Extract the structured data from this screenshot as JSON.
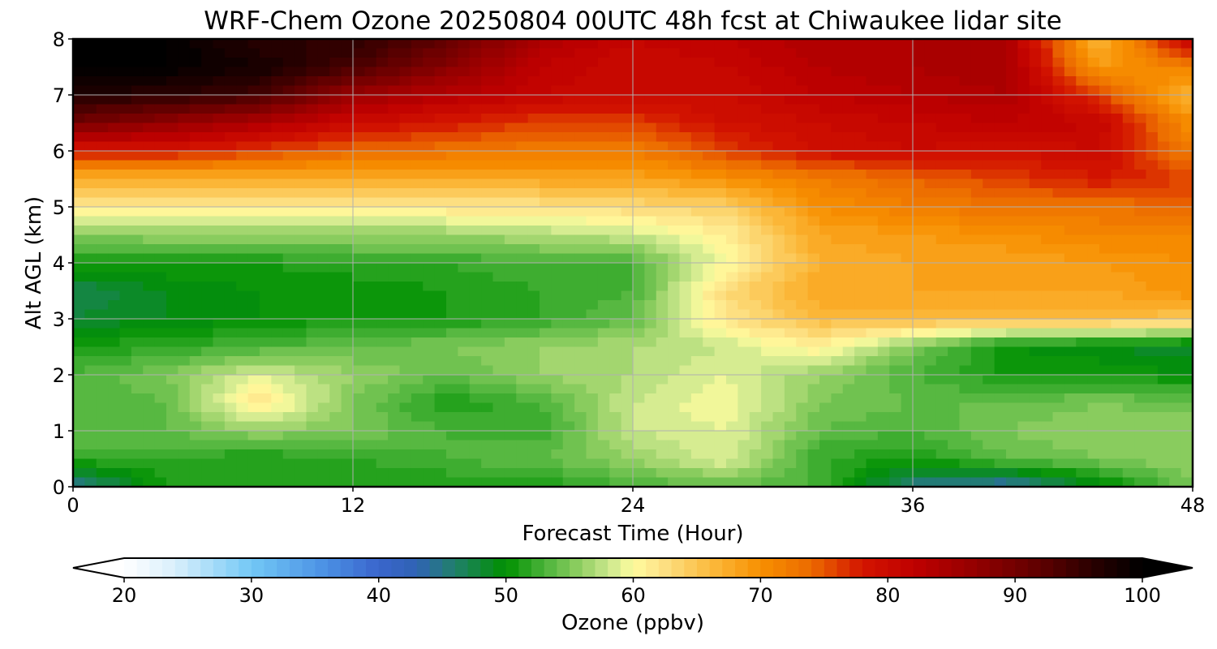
{
  "chart_data": {
    "type": "heatmap",
    "title": "WRF-Chem Ozone  20250804 00UTC 48h fcst at Chiwaukee lidar site",
    "xlabel": "Forecast Time (Hour)",
    "ylabel": "Alt AGL (km)",
    "xlim": [
      0,
      48
    ],
    "ylim": [
      0,
      8
    ],
    "x_ticks": [
      "0",
      "12",
      "24",
      "36",
      "48"
    ],
    "y_ticks": [
      "0",
      "1",
      "2",
      "3",
      "4",
      "5",
      "6",
      "7",
      "8"
    ],
    "grid": true,
    "x_hours": [
      0,
      4,
      8,
      12,
      16,
      20,
      24,
      28,
      32,
      36,
      40,
      44,
      48
    ],
    "z_km": [
      0,
      0.5,
      1,
      1.5,
      2,
      2.5,
      3,
      3.5,
      4,
      4.5,
      5,
      5.5,
      6,
      6.5,
      7,
      7.5,
      8
    ],
    "ozone_ppbv": [
      [
        44,
        51,
        51,
        51,
        51,
        51,
        53,
        54,
        53,
        45,
        43,
        49,
        55
      ],
      [
        52,
        52,
        51,
        52,
        53,
        54,
        56,
        59,
        52,
        51,
        54,
        55,
        56
      ],
      [
        54,
        54,
        56,
        55,
        53,
        52,
        58,
        59,
        54,
        53,
        55,
        56,
        56
      ],
      [
        53,
        54,
        62,
        55,
        51,
        53,
        58,
        60,
        55,
        54,
        54,
        55,
        54
      ],
      [
        53,
        55,
        59,
        56,
        54,
        56,
        57,
        59,
        56,
        53,
        51,
        51,
        50
      ],
      [
        51,
        52,
        53,
        54,
        55,
        56,
        57,
        58,
        61,
        55,
        50,
        49,
        48
      ],
      [
        48,
        49,
        50,
        51,
        51,
        52,
        54,
        62,
        66,
        66,
        66,
        66,
        65
      ],
      [
        47,
        49,
        50,
        50,
        51,
        52,
        53,
        63,
        68,
        68,
        68,
        68,
        70
      ],
      [
        51,
        51,
        51,
        52,
        52,
        53,
        53,
        60,
        67,
        68,
        68,
        69,
        70
      ],
      [
        55,
        56,
        56,
        56,
        56,
        57,
        58,
        61,
        68,
        69,
        70,
        71,
        71
      ],
      [
        61,
        61,
        61,
        61,
        62,
        62,
        63,
        64,
        70,
        72,
        73,
        73,
        74
      ],
      [
        67,
        67,
        67,
        67,
        67,
        68,
        68,
        70,
        72,
        74,
        76,
        78,
        76
      ],
      [
        78,
        78,
        76,
        74,
        73,
        72,
        72,
        76,
        79,
        80,
        79,
        80,
        72
      ],
      [
        90,
        87,
        84,
        80,
        78,
        76,
        76,
        79,
        80,
        81,
        82,
        81,
        70
      ],
      [
        97,
        96,
        94,
        86,
        83,
        81,
        80,
        80,
        82,
        83,
        84,
        76,
        66
      ],
      [
        100,
        100,
        98,
        94,
        88,
        82,
        80,
        81,
        83,
        84,
        85,
        69,
        72
      ],
      [
        100,
        100,
        96,
        96,
        92,
        84,
        81,
        82,
        84,
        84,
        84,
        66,
        82
      ]
    ],
    "colorbar": {
      "label": "Ozone  (ppbv)",
      "min": 20,
      "max": 100,
      "step": 1,
      "extend": "both",
      "ticks": [
        "20",
        "30",
        "40",
        "50",
        "60",
        "70",
        "80",
        "90",
        "100"
      ],
      "stops": [
        {
          "v": 20,
          "c": "#ffffff"
        },
        {
          "v": 24,
          "c": "#d9effb"
        },
        {
          "v": 30,
          "c": "#72c8f6"
        },
        {
          "v": 36,
          "c": "#4a8ee3"
        },
        {
          "v": 40,
          "c": "#3a65cc"
        },
        {
          "v": 43,
          "c": "#2f63b4"
        },
        {
          "v": 46,
          "c": "#20806a"
        },
        {
          "v": 50,
          "c": "#009000"
        },
        {
          "v": 53,
          "c": "#4ab33a"
        },
        {
          "v": 56,
          "c": "#96d165"
        },
        {
          "v": 58,
          "c": "#c8e68c"
        },
        {
          "v": 60,
          "c": "#fffc9e"
        },
        {
          "v": 62,
          "c": "#fde48a"
        },
        {
          "v": 66,
          "c": "#fbbb3f"
        },
        {
          "v": 70,
          "c": "#f79000"
        },
        {
          "v": 74,
          "c": "#ec6a00"
        },
        {
          "v": 78,
          "c": "#d31400"
        },
        {
          "v": 82,
          "c": "#bf0000"
        },
        {
          "v": 86,
          "c": "#9c0000"
        },
        {
          "v": 92,
          "c": "#5e0000"
        },
        {
          "v": 96,
          "c": "#2a0000"
        },
        {
          "v": 100,
          "c": "#000000"
        }
      ]
    }
  }
}
